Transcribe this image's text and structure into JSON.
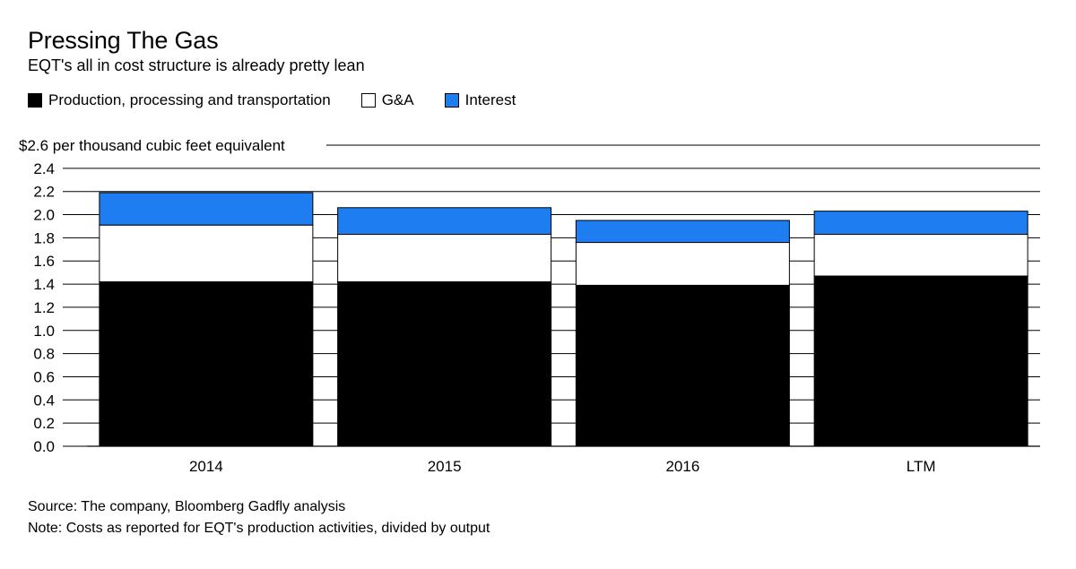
{
  "header": {
    "title": "Pressing The Gas",
    "subtitle": "EQT's all in cost structure is already pretty lean"
  },
  "colors": {
    "production": "#000000",
    "ga": "#ffffff",
    "interest": "#1e7df0",
    "grid": "#000000",
    "border": "#000000"
  },
  "legend": [
    {
      "key": "production",
      "label": "Production, processing and transportation"
    },
    {
      "key": "ga",
      "label": "G&A"
    },
    {
      "key": "interest",
      "label": "Interest"
    }
  ],
  "chart_data": {
    "type": "bar",
    "stacked": true,
    "title": "Pressing The Gas",
    "subtitle": "EQT's all in cost structure is already pretty lean",
    "ylabel": "$2.6 per thousand cubic feet equivalent",
    "top_tick_label": "$2.6 per thousand cubic feet equivalent",
    "ylim": [
      0,
      2.6
    ],
    "yticks": [
      0.0,
      0.2,
      0.4,
      0.6,
      0.8,
      1.0,
      1.2,
      1.4,
      1.6,
      1.8,
      2.0,
      2.2,
      2.4,
      2.6
    ],
    "ytick_labels": [
      "0.0",
      "0.2",
      "0.4",
      "0.6",
      "0.8",
      "1.0",
      "1.2",
      "1.4",
      "1.6",
      "1.8",
      "2.0",
      "2.2",
      "2.4"
    ],
    "categories": [
      "2014",
      "2015",
      "2016",
      "LTM"
    ],
    "series": [
      {
        "name": "Production, processing and transportation",
        "key": "production",
        "values": [
          1.42,
          1.42,
          1.39,
          1.47
        ]
      },
      {
        "name": "G&A",
        "key": "ga",
        "values": [
          0.49,
          0.41,
          0.37,
          0.36
        ]
      },
      {
        "name": "Interest",
        "key": "interest",
        "values": [
          0.28,
          0.23,
          0.19,
          0.2
        ]
      }
    ],
    "grid": true,
    "legend_position": "top-left"
  },
  "footer": {
    "source": "Source: The company, Bloomberg Gadfly analysis",
    "note": "Note: Costs as reported for EQT's production activities, divided by output"
  }
}
